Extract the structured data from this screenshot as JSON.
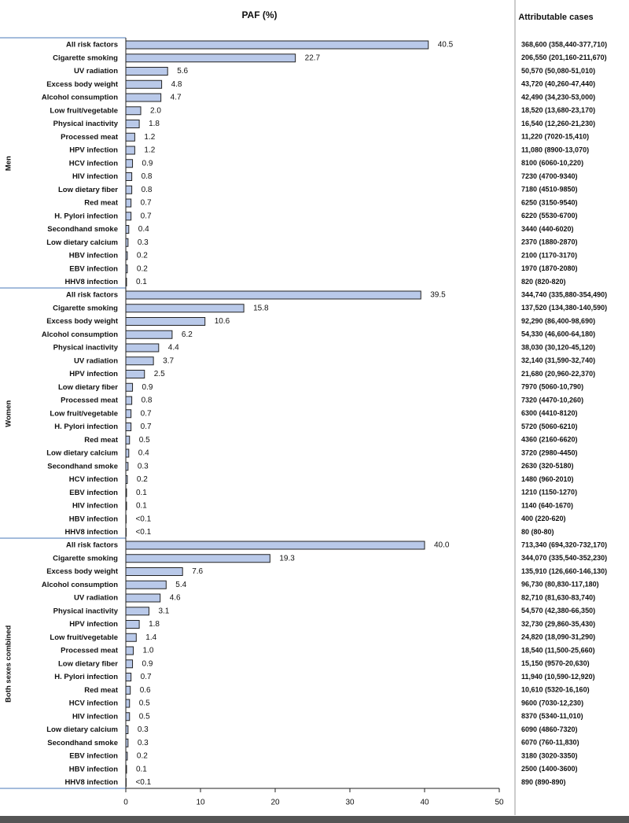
{
  "chart_data": {
    "type": "bar",
    "title": "PAF (%)",
    "table_title": "Attributable cases",
    "color": "#b9c9e9",
    "xlim": [
      0,
      50
    ],
    "xticks": [
      0,
      10,
      20,
      30,
      40,
      50
    ],
    "groups": [
      {
        "name": "Men",
        "categories": [
          "All risk factors",
          "Cigarette smoking",
          "UV radiation",
          "Excess body weight",
          "Alcohol consumption",
          "Low fruit/vegetable",
          "Physical inactivity",
          "Processed meat",
          "HPV infection",
          "HCV infection",
          "HIV infection",
          "Low dietary fiber",
          "Red meat",
          "H. Pylori infection",
          "Secondhand smoke",
          "Low dietary calcium",
          "HBV infection",
          "EBV infection",
          "HHV8 infection"
        ],
        "values": [
          40.5,
          22.7,
          5.6,
          4.8,
          4.7,
          2.0,
          1.8,
          1.2,
          1.2,
          0.9,
          0.8,
          0.8,
          0.7,
          0.7,
          0.4,
          0.3,
          0.2,
          0.2,
          0.1
        ],
        "value_labels": [
          "40.5",
          "22.7",
          "5.6",
          "4.8",
          "4.7",
          "2.0",
          "1.8",
          "1.2",
          "1.2",
          "0.9",
          "0.8",
          "0.8",
          "0.7",
          "0.7",
          "0.4",
          "0.3",
          "0.2",
          "0.2",
          "0.1"
        ],
        "cases": [
          "368,600 (358,440-377,710)",
          "206,550 (201,160-211,670)",
          "50,570 (50,080-51,010)",
          "43,720 (40,260-47,440)",
          "42,490 (34,230-53,000)",
          "18,520 (13,680-23,170)",
          "16,540 (12,260-21,230)",
          "11,220 (7020-15,410)",
          "11,080 (8900-13,070)",
          "8100 (6060-10,220)",
          "7230 (4700-9340)",
          "7180 (4510-9850)",
          "6250 (3150-9540)",
          "6220 (5530-6700)",
          "3440 (440-6020)",
          "2370 (1880-2870)",
          "2100 (1170-3170)",
          "1970 (1870-2080)",
          "820 (820-820)"
        ]
      },
      {
        "name": "Women",
        "categories": [
          "All risk factors",
          "Cigarette smoking",
          "Excess body weight",
          "Alcohol consumption",
          "Physical inactivity",
          "UV radiation",
          "HPV infection",
          "Low dietary fiber",
          "Processed meat",
          "Low fruit/vegetable",
          "H. Pylori infection",
          "Red meat",
          "Low dietary calcium",
          "Secondhand smoke",
          "HCV infection",
          "EBV infection",
          "HIV infection",
          "HBV infection",
          "HHV8 infection"
        ],
        "values": [
          39.5,
          15.8,
          10.6,
          6.2,
          4.4,
          3.7,
          2.5,
          0.9,
          0.8,
          0.7,
          0.7,
          0.5,
          0.4,
          0.3,
          0.2,
          0.1,
          0.1,
          0.05,
          0.05
        ],
        "value_labels": [
          "39.5",
          "15.8",
          "10.6",
          "6.2",
          "4.4",
          "3.7",
          "2.5",
          "0.9",
          "0.8",
          "0.7",
          "0.7",
          "0.5",
          "0.4",
          "0.3",
          "0.2",
          "0.1",
          "0.1",
          "<0.1",
          "<0.1"
        ],
        "cases": [
          "344,740 (335,880-354,490)",
          "137,520 (134,380-140,590)",
          "92,290 (86,400-98,690)",
          "54,330 (46,600-64,180)",
          "38,030 (30,120-45,120)",
          "32,140 (31,590-32,740)",
          "21,680 (20,960-22,370)",
          "7970 (5060-10,790)",
          "7320 (4470-10,260)",
          "6300 (4410-8120)",
          "5720 (5060-6210)",
          "4360 (2160-6620)",
          "3720 (2980-4450)",
          "2630 (320-5180)",
          "1480 (960-2010)",
          "1210 (1150-1270)",
          "1140 (640-1670)",
          "400 (220-620)",
          "80 (80-80)"
        ]
      },
      {
        "name": "Both sexes combined",
        "categories": [
          "All risk factors",
          "Cigarette smoking",
          "Excess body weight",
          "Alcohol consumption",
          "UV radiation",
          "Physical inactivity",
          "HPV infection",
          "Low fruit/vegetable",
          "Processed meat",
          "Low dietary fiber",
          "H. Pylori infection",
          "Red meat",
          "HCV infection",
          "HIV infection",
          "Low dietary calcium",
          "Secondhand smoke",
          "EBV infection",
          "HBV infection",
          "HHV8 infection"
        ],
        "values": [
          40.0,
          19.3,
          7.6,
          5.4,
          4.6,
          3.1,
          1.8,
          1.4,
          1.0,
          0.9,
          0.7,
          0.6,
          0.5,
          0.5,
          0.3,
          0.3,
          0.2,
          0.1,
          0.05
        ],
        "value_labels": [
          "40.0",
          "19.3",
          "7.6",
          "5.4",
          "4.6",
          "3.1",
          "1.8",
          "1.4",
          "1.0",
          "0.9",
          "0.7",
          "0.6",
          "0.5",
          "0.5",
          "0.3",
          "0.3",
          "0.2",
          "0.1",
          "<0.1"
        ],
        "cases": [
          "713,340 (694,320-732,170)",
          "344,070 (335,540-352,230)",
          "135,910 (126,660-146,130)",
          "96,730 (80,830-117,180)",
          "82,710 (81,630-83,740)",
          "54,570 (42,380-66,350)",
          "32,730 (29,860-35,430)",
          "24,820 (18,090-31,290)",
          "18,540 (11,500-25,660)",
          "15,150 (9570-20,630)",
          "11,940 (10,590-12,920)",
          "10,610 (5320-16,160)",
          "9600 (7030-12,230)",
          "8370 (5340-11,010)",
          "6090 (4860-7320)",
          "6070 (760-11,830)",
          "3180 (3020-3350)",
          "2500 (1400-3600)",
          "890 (890-890)"
        ]
      }
    ]
  }
}
